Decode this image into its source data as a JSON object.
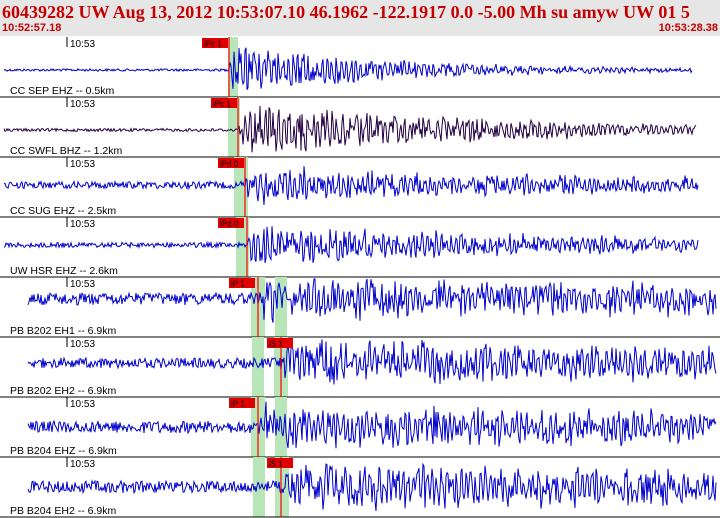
{
  "header": {
    "title": "60439282 UW Aug 13, 2012 10:53:07.10    46.1962 -122.1917  0.0 -5.00 Mh su amyw UW 01   5",
    "start_time": "10:52:57.18",
    "end_time": "10:53:28.38"
  },
  "colors": {
    "header_background": "#e6e6e6",
    "header_text": "#c40000",
    "waveform_blue": "#0000cc",
    "waveform_dark": "#220044",
    "pick_label_bg": "#e00000",
    "pick_line": "#ff0000",
    "pick_window": "#b8e6b8"
  },
  "traces": [
    {
      "time_label": "10:53",
      "station_label": "CC SEP EHZ -- 0.5km",
      "color": "#0000cc",
      "picks": [
        {
          "label": "iPc 1",
          "phase": "P"
        }
      ]
    },
    {
      "time_label": "10:53",
      "station_label": "CC SWFL BHZ -- 1.2km",
      "color": "#220044",
      "picks": [
        {
          "label": "iPc 1",
          "phase": "P"
        }
      ]
    },
    {
      "time_label": "10:53",
      "station_label": "CC SUG EHZ -- 2.5km",
      "color": "#0000cc",
      "picks": [
        {
          "label": "iPd 0",
          "phase": "P"
        }
      ]
    },
    {
      "time_label": "10:53",
      "station_label": "UW HSR EHZ -- 2.6km",
      "color": "#0000cc",
      "picks": [
        {
          "label": "iPd 0",
          "phase": "P"
        }
      ]
    },
    {
      "time_label": "10:53",
      "station_label": "PB B202 EH1 -- 6.9km",
      "color": "#0000cc",
      "picks": [
        {
          "label": "iP 1",
          "phase": "P"
        }
      ]
    },
    {
      "time_label": "10:53",
      "station_label": "PB B202 EH2 -- 6.9km",
      "color": "#0000cc",
      "picks": [
        {
          "label": "iS 1",
          "phase": "S"
        }
      ]
    },
    {
      "time_label": "10:53",
      "station_label": "PB B204 EHZ -- 6.9km",
      "color": "#0000cc",
      "picks": [
        {
          "label": "iP 1",
          "phase": "P"
        }
      ]
    },
    {
      "time_label": "10:53",
      "station_label": "PB B204 EH2 -- 6.9km",
      "color": "#0000cc",
      "picks": [
        {
          "label": "iS 1",
          "phase": "S"
        }
      ]
    }
  ]
}
